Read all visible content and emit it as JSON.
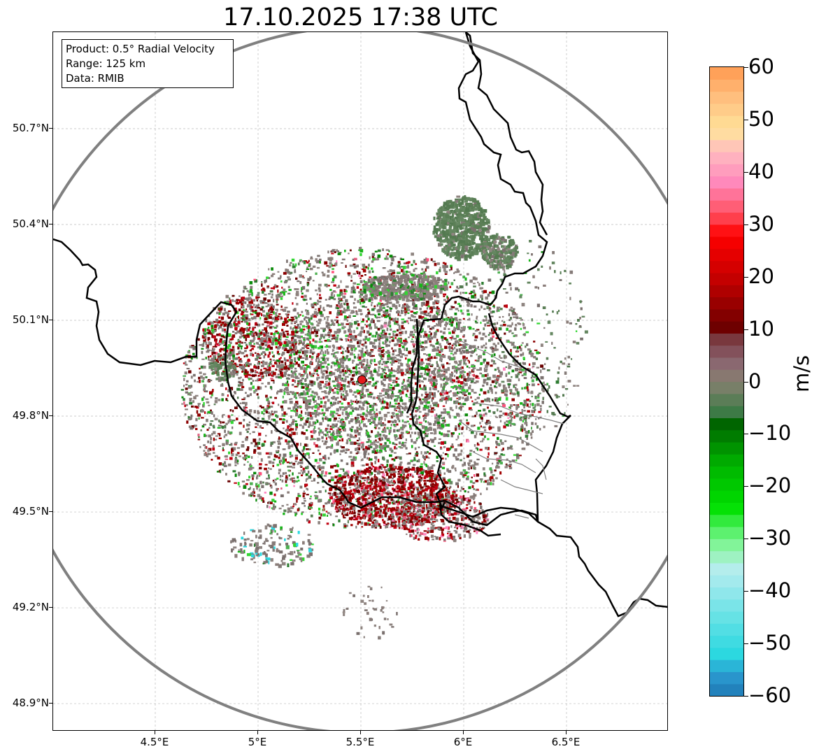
{
  "title": "17.10.2025 17:38 UTC",
  "info_box": {
    "product": "Product: 0.5° Radial Velocity",
    "range": "Range: 125 km",
    "data": "Data: RMIB"
  },
  "map": {
    "lon_range": [
      4.0,
      7.0
    ],
    "lat_range": [
      48.8,
      51.0
    ],
    "radar_center": {
      "lon": 5.505,
      "lat": 49.914
    },
    "range_circle_color": "#808080",
    "radar_marker_color": "#e31a1c",
    "border_color": "#000000",
    "subregion_border_color": "#808080",
    "gridlines": true,
    "lat_ticks": [
      "50.7°N",
      "50.4°N",
      "50.1°N",
      "49.8°N",
      "49.5°N",
      "49.2°N",
      "48.9°N"
    ],
    "lat_tick_values": [
      50.7,
      50.4,
      50.1,
      49.8,
      49.5,
      49.2,
      48.9
    ],
    "lon_ticks": [
      "4.5°E",
      "5°E",
      "5.5°E",
      "6°E",
      "6.5°E"
    ],
    "lon_tick_values": [
      4.5,
      5.0,
      5.5,
      6.0,
      6.5
    ]
  },
  "colorbar": {
    "label": "m/s",
    "min": -60,
    "max": 60,
    "ticks": [
      "60",
      "50",
      "40",
      "30",
      "20",
      "10",
      "0",
      "−10",
      "−20",
      "−30",
      "−40",
      "−50",
      "−60"
    ],
    "tick_values": [
      60,
      50,
      40,
      30,
      20,
      10,
      0,
      -10,
      -20,
      -30,
      -40,
      -50,
      -60
    ],
    "stops": [
      {
        "v": -60,
        "c": "#1f78b4"
      },
      {
        "v": -56,
        "c": "#2a9ad0"
      },
      {
        "v": -52,
        "c": "#2bd8e0"
      },
      {
        "v": -44,
        "c": "#6ee3e6"
      },
      {
        "v": -36,
        "c": "#b6ecf0"
      },
      {
        "v": -32,
        "c": "#90f5a8"
      },
      {
        "v": -28,
        "c": "#4ff060"
      },
      {
        "v": -24,
        "c": "#00e000"
      },
      {
        "v": -16,
        "c": "#00b400"
      },
      {
        "v": -8,
        "c": "#006400"
      },
      {
        "v": -6,
        "c": "#3a7a44"
      },
      {
        "v": 0,
        "c": "#878070"
      },
      {
        "v": 4,
        "c": "#8a6470"
      },
      {
        "v": 8,
        "c": "#7a3a40"
      },
      {
        "v": 10,
        "c": "#6a0000"
      },
      {
        "v": 20,
        "c": "#c80000"
      },
      {
        "v": 28,
        "c": "#ff0000"
      },
      {
        "v": 32,
        "c": "#ff5060"
      },
      {
        "v": 38,
        "c": "#ff88bb"
      },
      {
        "v": 44,
        "c": "#ffbcc0"
      },
      {
        "v": 48,
        "c": "#ffe39a"
      },
      {
        "v": 54,
        "c": "#ffc080"
      },
      {
        "v": 60,
        "c": "#ff9a50"
      }
    ]
  }
}
